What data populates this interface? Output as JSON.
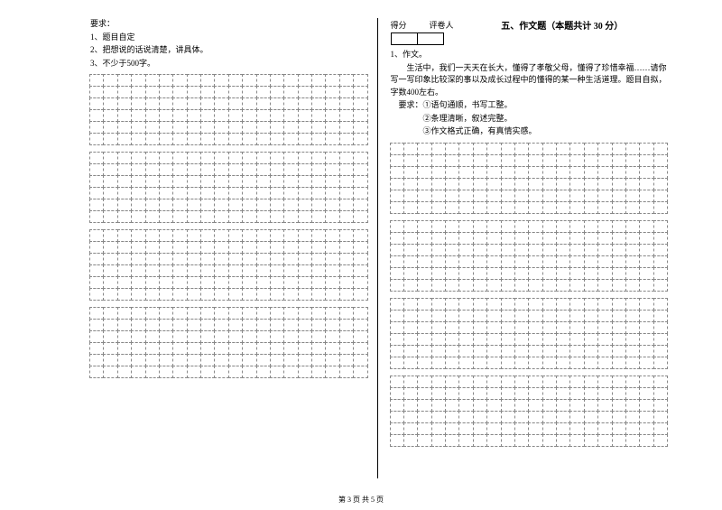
{
  "left": {
    "req_label": "要求：",
    "req_1": "1、题目自定",
    "req_2": "2、把想说的话说清楚，讲具体。",
    "req_3": "3、不少于500字。",
    "grid": {
      "blocks": 4,
      "rows_per_block": 6,
      "cols": 20
    }
  },
  "right": {
    "score_label": "得分",
    "grader_label": "评卷人",
    "section_title": "五、作文题（本题共计 30 分）",
    "item_no": "1、作文。",
    "body_1": "生活中，我们一天天在长大，懂得了孝敬父母，懂得了珍惜幸福……请你写一写印象比较深的事以及成长过程中的懂得的某一种生活道理。题目自拟，字数400左右。",
    "rq_label": "要求：",
    "rq_1": "①语句通顺，书写工整。",
    "rq_2": "②条理清晰，叙述完整。",
    "rq_3": "③作文格式正确，有真情实感。",
    "grid": {
      "blocks": 4,
      "rows_per_block": 6,
      "cols": 20
    }
  },
  "footer": "第 3 页 共 5 页",
  "colors": {
    "text": "#000000",
    "bg": "#ffffff",
    "dash": "#888888"
  }
}
